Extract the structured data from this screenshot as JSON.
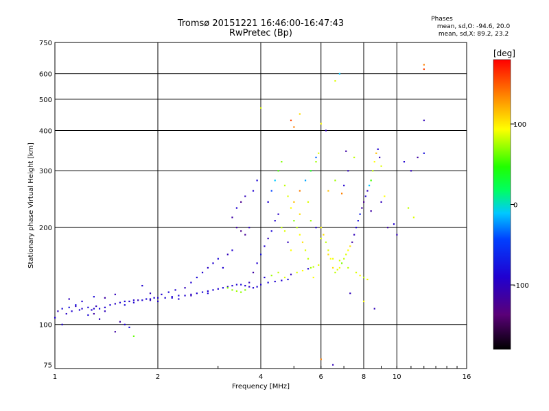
{
  "chart_data": {
    "type": "scatter",
    "title": "Tromsø 20151221 16:46:00-16:47:43",
    "subtitle": "RwPretec (Bp)",
    "stats": {
      "header": "Phases",
      "line_o": "mean, sd,O: -94.6, 20.0",
      "line_x": "mean, sd,X:  89.2, 23.2"
    },
    "xlabel": "Frequency [MHz]",
    "ylabel": "Stationary phase Virtual Height [km]",
    "x_scale": "log",
    "y_scale": "log",
    "xlim": [
      1,
      16
    ],
    "ylim": [
      73,
      750
    ],
    "x_ticks": [
      1,
      2,
      4,
      6,
      8,
      10,
      16
    ],
    "y_ticks": [
      75,
      100,
      200,
      300,
      400,
      500,
      600,
      750
    ],
    "grid": true,
    "colorbar": {
      "label": "[deg]",
      "range": [
        -180,
        180
      ],
      "ticks": [
        100,
        0,
        -100
      ],
      "colormap": "black-purple-blue-cyan-green-yellow-red"
    },
    "series": [
      {
        "points": [
          [
            1.0,
            105,
            -100
          ],
          [
            1.02,
            110,
            -110
          ],
          [
            1.05,
            112,
            -95
          ],
          [
            1.08,
            108,
            -105
          ],
          [
            1.1,
            113,
            -90
          ],
          [
            1.12,
            110,
            -100
          ],
          [
            1.15,
            114,
            -110
          ],
          [
            1.18,
            111,
            -98
          ],
          [
            1.2,
            112,
            -102
          ],
          [
            1.25,
            113,
            -95
          ],
          [
            1.28,
            111,
            -100
          ],
          [
            1.32,
            114,
            -110
          ],
          [
            1.35,
            112,
            -95
          ],
          [
            1.4,
            113,
            -100
          ],
          [
            1.45,
            115,
            -98
          ],
          [
            1.5,
            116,
            -105
          ],
          [
            1.55,
            117,
            -100
          ],
          [
            1.6,
            118,
            -95
          ],
          [
            1.65,
            118,
            -102
          ],
          [
            1.7,
            119,
            -100
          ],
          [
            1.75,
            119,
            -110
          ],
          [
            1.8,
            119,
            -98
          ],
          [
            1.85,
            120,
            -95
          ],
          [
            1.9,
            120,
            -100
          ],
          [
            1.95,
            121,
            -100
          ],
          [
            2.0,
            121,
            -102
          ],
          [
            2.1,
            121,
            -98
          ],
          [
            2.2,
            122,
            -100
          ],
          [
            2.3,
            123,
            -95
          ],
          [
            2.4,
            123,
            -100
          ],
          [
            2.5,
            124,
            -105
          ],
          [
            2.6,
            125,
            -100
          ],
          [
            2.7,
            126,
            -95
          ],
          [
            2.8,
            127,
            -100
          ],
          [
            2.9,
            128,
            -98
          ],
          [
            3.0,
            129,
            -100
          ],
          [
            3.1,
            130,
            -95
          ],
          [
            3.2,
            131,
            -110
          ],
          [
            3.3,
            132,
            -100
          ],
          [
            3.4,
            133,
            -98
          ],
          [
            3.5,
            133,
            -95
          ],
          [
            3.6,
            132,
            -100
          ],
          [
            3.7,
            131,
            -105
          ],
          [
            3.8,
            130,
            -100
          ],
          [
            3.9,
            131,
            -98
          ],
          [
            4.0,
            133,
            -100
          ],
          [
            4.2,
            135,
            -95
          ],
          [
            4.4,
            136,
            -100
          ],
          [
            4.6,
            137,
            -100
          ],
          [
            4.8,
            138,
            -95
          ],
          [
            1.1,
            120,
            -110
          ],
          [
            1.2,
            118,
            -100
          ],
          [
            1.3,
            122,
            -95
          ],
          [
            1.4,
            121,
            -120
          ],
          [
            1.5,
            124,
            -110
          ],
          [
            1.55,
            102,
            -120
          ],
          [
            1.6,
            100,
            -100
          ],
          [
            1.65,
            98,
            -95
          ],
          [
            1.5,
            95,
            -120
          ],
          [
            1.7,
            92,
            50
          ],
          [
            1.05,
            100,
            -100
          ],
          [
            1.15,
            115,
            -90
          ],
          [
            1.3,
            108,
            -120
          ],
          [
            1.35,
            104,
            -110
          ],
          [
            1.25,
            107,
            -95
          ],
          [
            1.8,
            132,
            -100
          ],
          [
            1.9,
            125,
            -110
          ],
          [
            2.05,
            124,
            -100
          ],
          [
            2.15,
            126,
            -95
          ],
          [
            2.25,
            128,
            -100
          ],
          [
            2.4,
            130,
            -110
          ],
          [
            2.5,
            135,
            -100
          ],
          [
            2.6,
            140,
            -95
          ],
          [
            2.7,
            145,
            -100
          ],
          [
            2.8,
            150,
            -105
          ],
          [
            2.9,
            155,
            -100
          ],
          [
            3.0,
            160,
            -95
          ],
          [
            3.1,
            150,
            -100
          ],
          [
            3.2,
            165,
            -110
          ],
          [
            3.3,
            170,
            -100
          ],
          [
            3.4,
            200,
            -120
          ],
          [
            3.5,
            195,
            -130
          ],
          [
            3.6,
            190,
            -125
          ],
          [
            3.7,
            200,
            -110
          ],
          [
            3.3,
            215,
            -120
          ],
          [
            3.4,
            230,
            -100
          ],
          [
            3.5,
            240,
            -130
          ],
          [
            3.6,
            250,
            -110
          ],
          [
            3.8,
            260,
            -100
          ],
          [
            3.9,
            280,
            -95
          ],
          [
            3.2,
            130,
            60
          ],
          [
            3.3,
            128,
            65
          ],
          [
            3.4,
            127,
            70
          ],
          [
            3.5,
            126,
            65
          ],
          [
            3.6,
            128,
            60
          ],
          [
            3.7,
            135,
            -110
          ],
          [
            3.8,
            145,
            -120
          ],
          [
            3.9,
            155,
            -100
          ],
          [
            4.0,
            165,
            -90
          ],
          [
            4.1,
            175,
            -100
          ],
          [
            4.2,
            185,
            -110
          ],
          [
            4.3,
            195,
            -95
          ],
          [
            4.4,
            210,
            -100
          ],
          [
            4.5,
            220,
            -105
          ],
          [
            4.2,
            240,
            -100
          ],
          [
            4.3,
            260,
            -60
          ],
          [
            4.4,
            280,
            -20
          ],
          [
            4.5,
            300,
            40
          ],
          [
            4.6,
            320,
            60
          ],
          [
            4.7,
            270,
            80
          ],
          [
            4.8,
            250,
            90
          ],
          [
            4.9,
            230,
            100
          ],
          [
            5.0,
            210,
            60
          ],
          [
            5.1,
            200,
            80
          ],
          [
            5.2,
            190,
            100
          ],
          [
            5.3,
            180,
            110
          ],
          [
            5.4,
            170,
            90
          ],
          [
            5.5,
            160,
            80
          ],
          [
            5.6,
            150,
            70
          ],
          [
            5.7,
            140,
            100
          ],
          [
            5.0,
            240,
            120
          ],
          [
            5.2,
            260,
            140
          ],
          [
            5.4,
            280,
            -30
          ],
          [
            5.6,
            300,
            20
          ],
          [
            5.8,
            320,
            70
          ],
          [
            5.9,
            340,
            90
          ],
          [
            6.0,
            200,
            100
          ],
          [
            6.1,
            190,
            110
          ],
          [
            6.2,
            180,
            80
          ],
          [
            6.3,
            170,
            90
          ],
          [
            6.4,
            160,
            100
          ],
          [
            6.5,
            150,
            110
          ],
          [
            6.6,
            145,
            80
          ],
          [
            6.7,
            148,
            90
          ],
          [
            6.8,
            150,
            100
          ],
          [
            6.9,
            155,
            60
          ],
          [
            7.0,
            160,
            80
          ],
          [
            7.1,
            165,
            90
          ],
          [
            7.2,
            170,
            100
          ],
          [
            7.3,
            175,
            110
          ],
          [
            7.4,
            180,
            -120
          ],
          [
            7.5,
            190,
            -110
          ],
          [
            7.6,
            200,
            -100
          ],
          [
            7.7,
            210,
            -90
          ],
          [
            7.8,
            220,
            -80
          ],
          [
            7.9,
            230,
            -120
          ],
          [
            8.0,
            240,
            -130
          ],
          [
            8.1,
            250,
            -100
          ],
          [
            8.2,
            260,
            -110
          ],
          [
            8.3,
            270,
            -20
          ],
          [
            8.4,
            280,
            40
          ],
          [
            8.5,
            300,
            80
          ],
          [
            8.6,
            320,
            100
          ],
          [
            8.7,
            340,
            120
          ],
          [
            8.8,
            350,
            -100
          ],
          [
            8.9,
            330,
            -110
          ],
          [
            9.0,
            310,
            90
          ],
          [
            9.2,
            250,
            100
          ],
          [
            9.4,
            200,
            -120
          ],
          [
            10.0,
            190,
            -110
          ],
          [
            10.5,
            320,
            -100
          ],
          [
            11.0,
            300,
            -110
          ],
          [
            11.5,
            330,
            -120
          ],
          [
            12.0,
            340,
            -90
          ],
          [
            12.0,
            430,
            -110
          ],
          [
            12.0,
            640,
            140
          ],
          [
            12.0,
            620,
            160
          ],
          [
            10.8,
            230,
            80
          ],
          [
            11.2,
            215,
            90
          ],
          [
            6.8,
            600,
            -20
          ],
          [
            6.6,
            570,
            90
          ],
          [
            6.0,
            420,
            100
          ],
          [
            5.2,
            450,
            110
          ],
          [
            5.0,
            410,
            140
          ],
          [
            6.2,
            400,
            -110
          ],
          [
            5.8,
            330,
            -50
          ],
          [
            4.0,
            470,
            90
          ],
          [
            4.9,
            430,
            160
          ],
          [
            7.1,
            345,
            -120
          ],
          [
            7.5,
            330,
            80
          ],
          [
            7.2,
            300,
            -110
          ],
          [
            6.6,
            280,
            70
          ],
          [
            6.3,
            260,
            120
          ],
          [
            5.5,
            240,
            90
          ],
          [
            5.2,
            220,
            110
          ],
          [
            4.6,
            200,
            80
          ],
          [
            4.7,
            195,
            90
          ],
          [
            4.8,
            180,
            -110
          ],
          [
            4.9,
            170,
            100
          ],
          [
            5.6,
            210,
            70
          ],
          [
            5.8,
            200,
            -100
          ],
          [
            6.0,
            185,
            90
          ],
          [
            6.3,
            165,
            110
          ],
          [
            6.5,
            160,
            95
          ],
          [
            6.8,
            158,
            85
          ],
          [
            7.2,
            150,
            80
          ],
          [
            7.6,
            145,
            90
          ],
          [
            7.8,
            142,
            100
          ],
          [
            8.0,
            140,
            80
          ],
          [
            8.2,
            138,
            95
          ],
          [
            4.1,
            140,
            -100
          ],
          [
            4.3,
            142,
            70
          ],
          [
            4.5,
            145,
            80
          ],
          [
            4.7,
            140,
            90
          ],
          [
            4.9,
            143,
            -110
          ],
          [
            5.1,
            145,
            90
          ],
          [
            5.3,
            147,
            100
          ],
          [
            5.5,
            149,
            -100
          ],
          [
            5.7,
            151,
            80
          ],
          [
            5.9,
            153,
            90
          ],
          [
            6.0,
            78,
            140
          ],
          [
            6.5,
            75,
            -110
          ],
          [
            8.6,
            112,
            -110
          ],
          [
            8.0,
            118,
            100
          ],
          [
            7.3,
            125,
            -110
          ],
          [
            9.8,
            205,
            -100
          ],
          [
            9.0,
            240,
            -110
          ],
          [
            8.4,
            225,
            -120
          ],
          [
            6.9,
            255,
            140
          ],
          [
            7.0,
            270,
            -100
          ],
          [
            1.3,
            112,
            -100
          ],
          [
            1.4,
            110,
            -110
          ],
          [
            1.6,
            115,
            -95
          ],
          [
            1.7,
            117,
            -100
          ],
          [
            1.9,
            119,
            -110
          ],
          [
            2.0,
            118,
            -100
          ],
          [
            2.2,
            121,
            -95
          ],
          [
            2.3,
            120,
            -100
          ],
          [
            2.5,
            123,
            -110
          ],
          [
            2.8,
            125,
            -95
          ]
        ]
      }
    ]
  }
}
